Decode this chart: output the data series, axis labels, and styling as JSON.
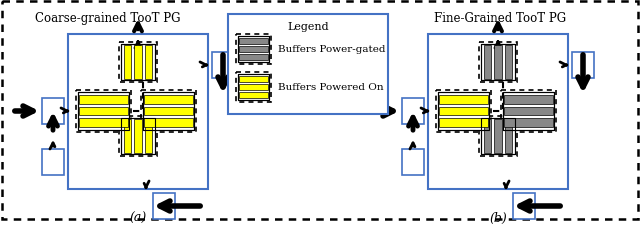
{
  "title_left": "Coarse-grained TooT PG",
  "title_right": "Fine-Grained TooT PG",
  "label_a": "(a)",
  "label_b": "(b)",
  "legend_title": "Legend",
  "legend_item1": "Buffers Power-gated",
  "legend_item2": "Buffers Powered On",
  "bg_color": "#ffffff",
  "yellow_color": "#ffff00",
  "gray_color": "#888888",
  "blue_color": "#4472c4"
}
